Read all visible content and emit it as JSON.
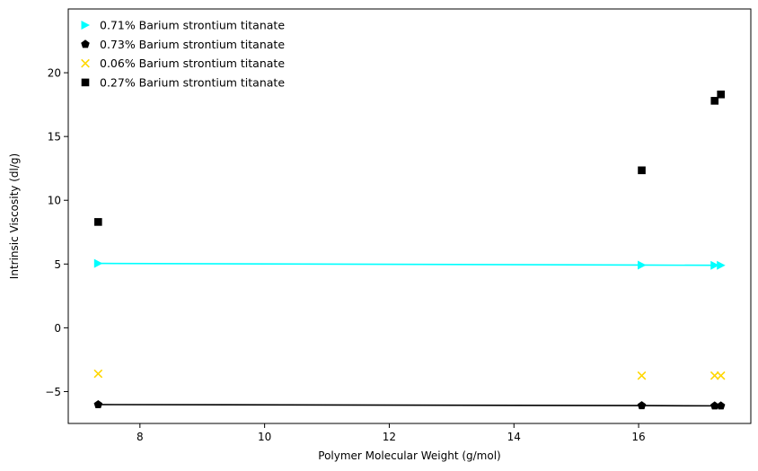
{
  "chart_data": {
    "type": "scatter",
    "title": "",
    "xlabel": "Polymer Molecular Weight (g/mol)",
    "ylabel": "Intrinsic Viscosity (dl/g)",
    "xlim": [
      6.85,
      17.8
    ],
    "ylim": [
      -7.5,
      25
    ],
    "xticks": [
      8,
      10,
      12,
      14,
      16
    ],
    "yticks": [
      -5,
      0,
      5,
      10,
      15,
      20
    ],
    "grid": false,
    "legend_position": "top-left",
    "series": [
      {
        "name": "0.71% Barium strontium titanate",
        "marker": "triangle-right",
        "color": "#00FFFF",
        "line": true,
        "x": [
          7.33,
          16.05,
          17.22,
          17.32
        ],
        "y": [
          5.05,
          4.92,
          4.9,
          4.9
        ]
      },
      {
        "name": "0.73% Barium strontium titanate",
        "marker": "pentagon",
        "color": "#000000",
        "line": true,
        "x": [
          7.33,
          16.05,
          17.22,
          17.32
        ],
        "y": [
          -6.02,
          -6.1,
          -6.12,
          -6.12
        ]
      },
      {
        "name": "0.06% Barium strontium titanate",
        "marker": "x",
        "color": "#FFD700",
        "line": false,
        "x": [
          7.33,
          16.05,
          17.22,
          17.32
        ],
        "y": [
          -3.6,
          -3.75,
          -3.75,
          -3.75
        ]
      },
      {
        "name": "0.27% Barium strontium titanate",
        "marker": "square",
        "color": "#000000",
        "line": false,
        "x": [
          7.33,
          16.05,
          17.22,
          17.32
        ],
        "y": [
          8.3,
          12.35,
          17.8,
          18.3
        ]
      }
    ]
  }
}
